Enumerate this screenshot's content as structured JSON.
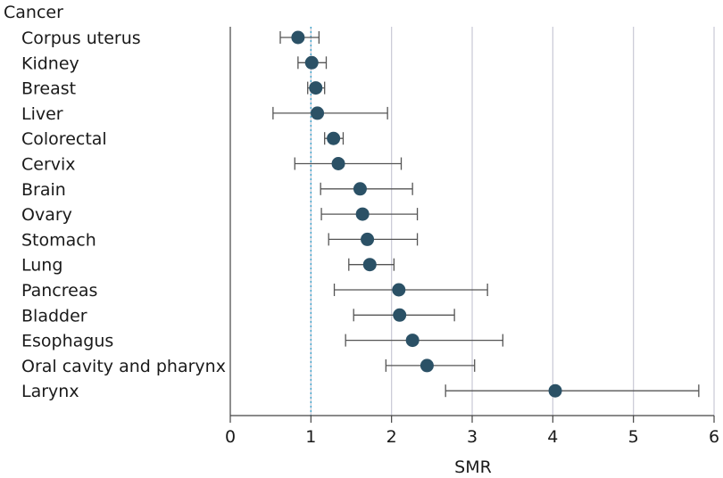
{
  "chart_data": {
    "type": "forest",
    "category_header": "Cancer",
    "xlabel": "SMR",
    "xlim": [
      0,
      6
    ],
    "xticks": [
      0,
      1,
      2,
      3,
      4,
      5,
      6
    ],
    "reference_line": 1,
    "grid": true,
    "colors": {
      "point": "#2b5166",
      "ci": "#555555",
      "grid": "#c9c9d6",
      "reference": "#3aa0c8"
    },
    "categories": [
      "Corpus uterus",
      "Kidney",
      "Breast",
      "Liver",
      "Colorectal",
      "Cervix",
      "Brain",
      "Ovary",
      "Stomach",
      "Lung",
      "Pancreas",
      "Bladder",
      "Esophagus",
      "Oral cavity and pharynx",
      "Larynx"
    ],
    "estimate": [
      0.84,
      1.01,
      1.06,
      1.08,
      1.28,
      1.34,
      1.61,
      1.64,
      1.7,
      1.73,
      2.09,
      2.1,
      2.26,
      2.44,
      4.03
    ],
    "lower": [
      0.62,
      0.84,
      0.96,
      0.53,
      1.17,
      0.8,
      1.12,
      1.13,
      1.22,
      1.47,
      1.29,
      1.53,
      1.43,
      1.93,
      2.67
    ],
    "upper": [
      1.1,
      1.19,
      1.17,
      1.95,
      1.4,
      2.12,
      2.26,
      2.32,
      2.32,
      2.03,
      3.19,
      2.78,
      3.38,
      3.03,
      5.81
    ]
  }
}
